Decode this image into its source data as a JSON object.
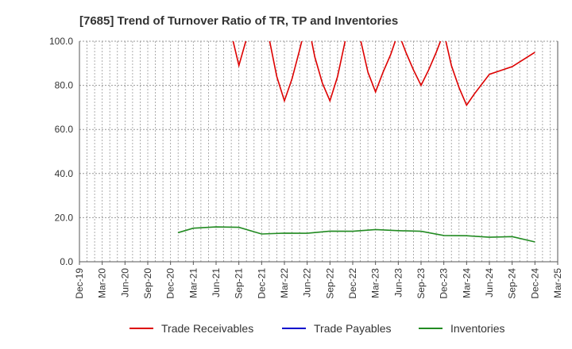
{
  "chart_data": {
    "type": "line",
    "title": "[7685]  Trend of Turnover Ratio of TR, TP and Inventories",
    "xlabel": "",
    "ylabel": "",
    "ylim": [
      0,
      100
    ],
    "yticks": [
      "0.0",
      "20.0",
      "40.0",
      "60.0",
      "80.0",
      "100.0"
    ],
    "x_start": "Dec-19",
    "x": [
      "Dec-19",
      "Jan-20",
      "Feb-20",
      "Mar-20",
      "Apr-20",
      "May-20",
      "Jun-20",
      "Jul-20",
      "Aug-20",
      "Sep-20",
      "Oct-20",
      "Nov-20",
      "Dec-20",
      "Jan-21",
      "Feb-21",
      "Mar-21",
      "Apr-21",
      "May-21",
      "Jun-21",
      "Jul-21",
      "Aug-21",
      "Sep-21",
      "Oct-21",
      "Nov-21",
      "Dec-21",
      "Jan-22",
      "Feb-22",
      "Mar-22",
      "Apr-22",
      "May-22",
      "Jun-22",
      "Jul-22",
      "Aug-22",
      "Sep-22",
      "Oct-22",
      "Nov-22",
      "Dec-22",
      "Jan-23",
      "Feb-23",
      "Mar-23",
      "Apr-23",
      "May-23",
      "Jun-23",
      "Jul-23",
      "Aug-23",
      "Sep-23",
      "Oct-23",
      "Nov-23",
      "Dec-23",
      "Jan-24",
      "Feb-24",
      "Mar-24",
      "Apr-24",
      "May-24",
      "Jun-24",
      "Jul-24",
      "Aug-24",
      "Sep-24",
      "Oct-24",
      "Nov-24",
      "Dec-24",
      "Jan-25",
      "Feb-25",
      "Mar-25"
    ],
    "xtick_labels": [
      "Dec-19",
      "Mar-20",
      "Jun-20",
      "Sep-20",
      "Dec-20",
      "Mar-21",
      "Jun-21",
      "Sep-21",
      "Dec-21",
      "Mar-22",
      "Jun-22",
      "Sep-22",
      "Dec-22",
      "Mar-23",
      "Jun-23",
      "Sep-23",
      "Dec-23",
      "Mar-24",
      "Jun-24",
      "Sep-24",
      "Dec-24",
      "Mar-25"
    ],
    "grid": true,
    "legend_position": "bottom",
    "series": [
      {
        "name": "Trade Receivables",
        "color": "#dd0000",
        "points": [
          [
            "Jul-21",
            118
          ],
          [
            "Sep-21",
            89
          ],
          [
            "Oct-21",
            101
          ],
          [
            "Nov-21",
            115
          ],
          [
            "Jan-22",
            101
          ],
          [
            "Feb-22",
            84
          ],
          [
            "Mar-22",
            73
          ],
          [
            "Apr-22",
            83
          ],
          [
            "May-22",
            96
          ],
          [
            "Jun-22",
            110
          ],
          [
            "Jul-22",
            93
          ],
          [
            "Aug-22",
            81
          ],
          [
            "Sep-22",
            73
          ],
          [
            "Oct-22",
            84
          ],
          [
            "Nov-22",
            100
          ],
          [
            "Dec-22",
            110
          ],
          [
            "Jan-23",
            101
          ],
          [
            "Feb-23",
            86
          ],
          [
            "Mar-23",
            77
          ],
          [
            "Apr-23",
            86
          ],
          [
            "May-23",
            94
          ],
          [
            "Jun-23",
            104
          ],
          [
            "Jul-23",
            95
          ],
          [
            "Aug-23",
            87
          ],
          [
            "Sep-23",
            80
          ],
          [
            "Oct-23",
            87
          ],
          [
            "Nov-23",
            95
          ],
          [
            "Dec-23",
            104
          ],
          [
            "Jan-24",
            89
          ],
          [
            "Feb-24",
            79
          ],
          [
            "Mar-24",
            71
          ],
          [
            "Apr-24",
            76
          ],
          [
            "Jun-24",
            85
          ],
          [
            "Sep-24",
            88.5
          ],
          [
            "Dec-24",
            95
          ]
        ]
      },
      {
        "name": "Trade Payables",
        "color": "#0000cc",
        "points": []
      },
      {
        "name": "Inventories",
        "color": "#228b22",
        "points": [
          [
            "Jan-21",
            13.2
          ],
          [
            "Mar-21",
            15.2
          ],
          [
            "Jun-21",
            15.8
          ],
          [
            "Sep-21",
            15.6
          ],
          [
            "Dec-21",
            12.6
          ],
          [
            "Mar-22",
            13.0
          ],
          [
            "Jun-22",
            12.9
          ],
          [
            "Sep-22",
            13.9
          ],
          [
            "Dec-22",
            13.8
          ],
          [
            "Mar-23",
            14.6
          ],
          [
            "Jun-23",
            14.1
          ],
          [
            "Sep-23",
            13.8
          ],
          [
            "Dec-23",
            11.9
          ],
          [
            "Mar-24",
            11.8
          ],
          [
            "Jun-24",
            11.1
          ],
          [
            "Sep-24",
            11.4
          ],
          [
            "Dec-24",
            9.0
          ]
        ]
      }
    ]
  }
}
